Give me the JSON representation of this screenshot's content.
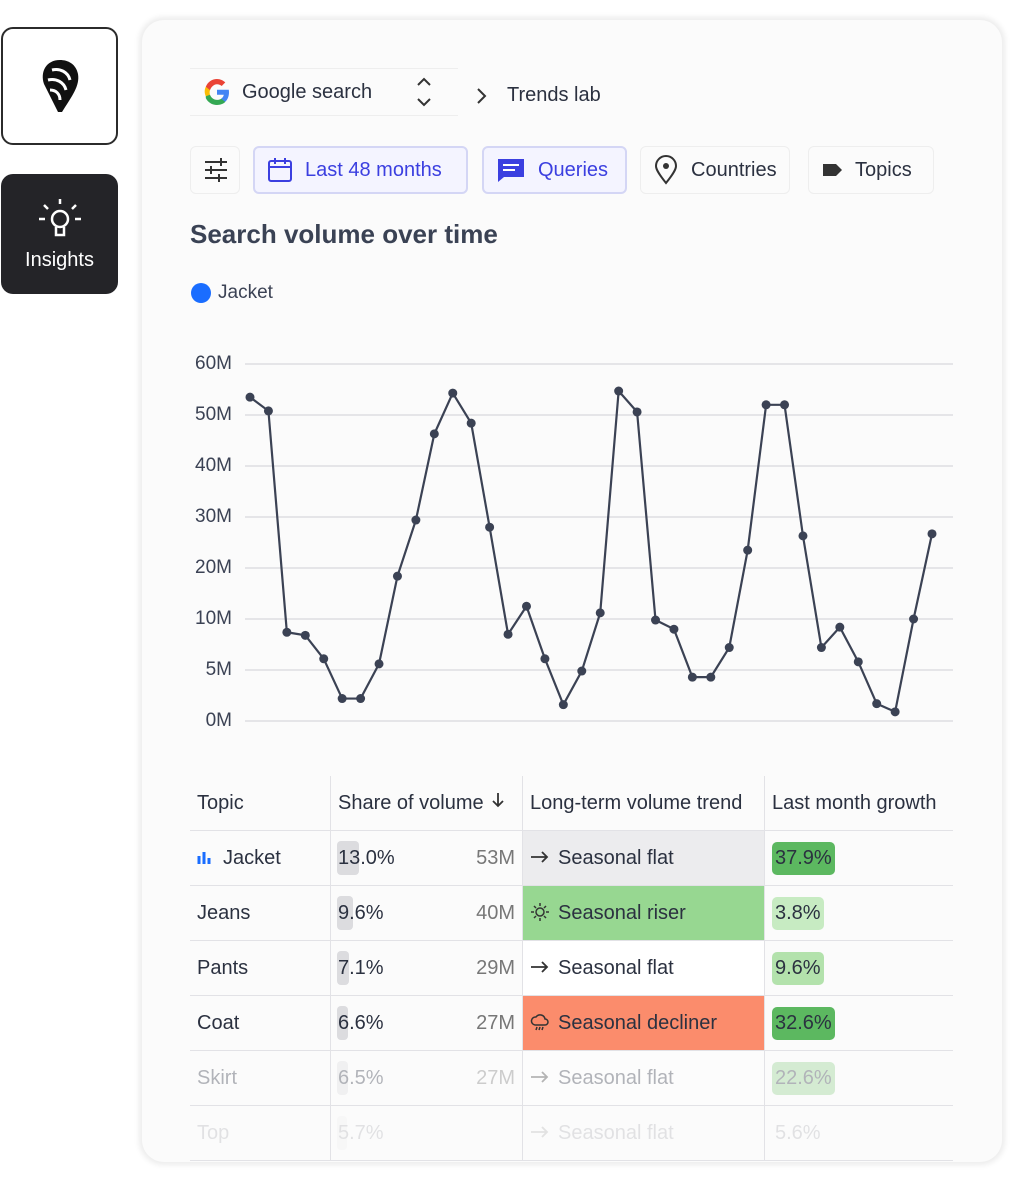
{
  "sidebar": {
    "insights": "Insights"
  },
  "source": "Google search",
  "breadcrumb": "Trends lab",
  "filters": [
    "Last 48 months",
    "Queries",
    "Countries",
    "Topics"
  ],
  "chart_data": {
    "type": "line",
    "title": "Search volume over time",
    "categories": [
      null,
      null,
      null,
      null,
      null,
      null,
      null,
      null,
      null,
      null,
      null,
      null,
      null,
      null,
      null,
      null,
      null,
      null,
      null,
      null,
      null,
      null,
      null,
      null,
      null,
      null,
      null,
      null,
      null,
      null,
      null,
      null,
      null,
      null,
      null,
      null,
      null,
      null
    ],
    "series": [
      {
        "name": "Jacket",
        "color": "#1a6dff",
        "values": [
          53.5,
          50.8,
          8.7,
          8.4,
          6.1,
          2.2,
          2.2,
          5.6,
          18.4,
          29.4,
          46.3,
          54.3,
          48.4,
          28.0,
          8.5,
          12.5,
          6.1,
          1.6,
          4.9,
          11.2,
          54.7,
          50.6,
          9.9,
          9.0,
          4.3,
          4.3,
          7.2,
          23.5,
          52.0,
          52.0,
          26.3,
          7.2,
          9.2,
          5.8,
          1.7,
          0.9,
          10.0,
          26.7
        ]
      }
    ],
    "line_color": "#3b4254",
    "ylim": [
      0,
      60
    ],
    "yticks": [
      {
        "value": 0,
        "label": "0M"
      },
      {
        "value": 5,
        "label": "5M"
      },
      {
        "value": 10,
        "label": "10M"
      },
      {
        "value": 20,
        "label": "20M"
      },
      {
        "value": 30,
        "label": "30M"
      },
      {
        "value": 40,
        "label": "40M"
      },
      {
        "value": 50,
        "label": "50M"
      },
      {
        "value": 60,
        "label": "60M"
      }
    ],
    "grid": true
  },
  "table": {
    "columns": [
      "Topic",
      "Share of volume",
      "Long-term volume trend",
      "Last month growth"
    ],
    "rows": [
      {
        "topic": "Jacket",
        "share": "13.0%",
        "volume": "53M",
        "trend": "Seasonal flat",
        "trend_color": "#ececee",
        "growth": "37.9%",
        "growth_color": "#5cb860"
      },
      {
        "topic": "Jeans",
        "share": "9.6%",
        "volume": "40M",
        "trend": "Seasonal riser",
        "trend_color": "#97d791",
        "growth": "3.8%",
        "growth_color": "#c7ebc2"
      },
      {
        "topic": "Pants",
        "share": "7.1%",
        "volume": "29M",
        "trend": "Seasonal flat",
        "trend_color": "#ffffff",
        "growth": "9.6%",
        "growth_color": "#b3e2ac"
      },
      {
        "topic": "Coat",
        "share": "6.6%",
        "volume": "27M",
        "trend": "Seasonal decliner",
        "trend_color": "#fb8c6c",
        "growth": "32.6%",
        "growth_color": "#5cb860"
      },
      {
        "topic": "Skirt",
        "share": "6.5%",
        "volume": "27M",
        "trend": "Seasonal flat",
        "trend_color": "#ffffff",
        "growth": "22.6%",
        "growth_color": "#8dcf88"
      },
      {
        "topic": "Top",
        "share": "5.7%",
        "volume": "",
        "trend": "Seasonal flat",
        "trend_color": "#ffffff",
        "growth": "5.6%",
        "growth_color": "#ffffff"
      }
    ]
  }
}
